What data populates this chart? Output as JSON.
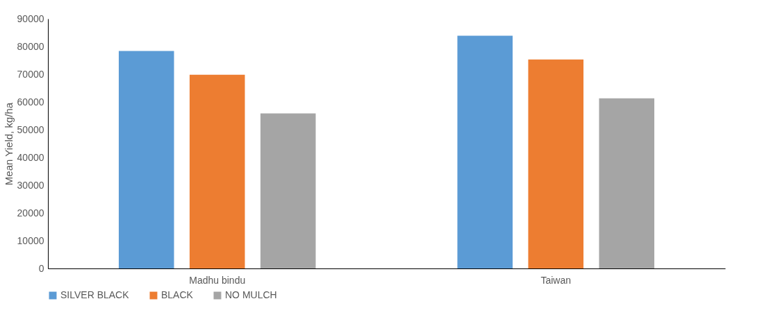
{
  "chart_data": {
    "type": "bar",
    "ylabel": "Mean Yield, kg/ha",
    "categories": [
      "Madhu bindu",
      "Taiwan"
    ],
    "series": [
      {
        "name": "SILVER BLACK",
        "color": "#5b9bd5",
        "values": [
          78400,
          83900
        ]
      },
      {
        "name": "BLACK",
        "color": "#ed7d31",
        "values": [
          69800,
          75300
        ]
      },
      {
        "name": "NO MULCH",
        "color": "#a5a5a5",
        "values": [
          55900,
          61300
        ]
      }
    ],
    "ylim": [
      0,
      90000
    ],
    "yticks": [
      0,
      10000,
      20000,
      30000,
      40000,
      50000,
      60000,
      70000,
      80000,
      90000
    ],
    "grid": false,
    "legend": "bottom"
  }
}
